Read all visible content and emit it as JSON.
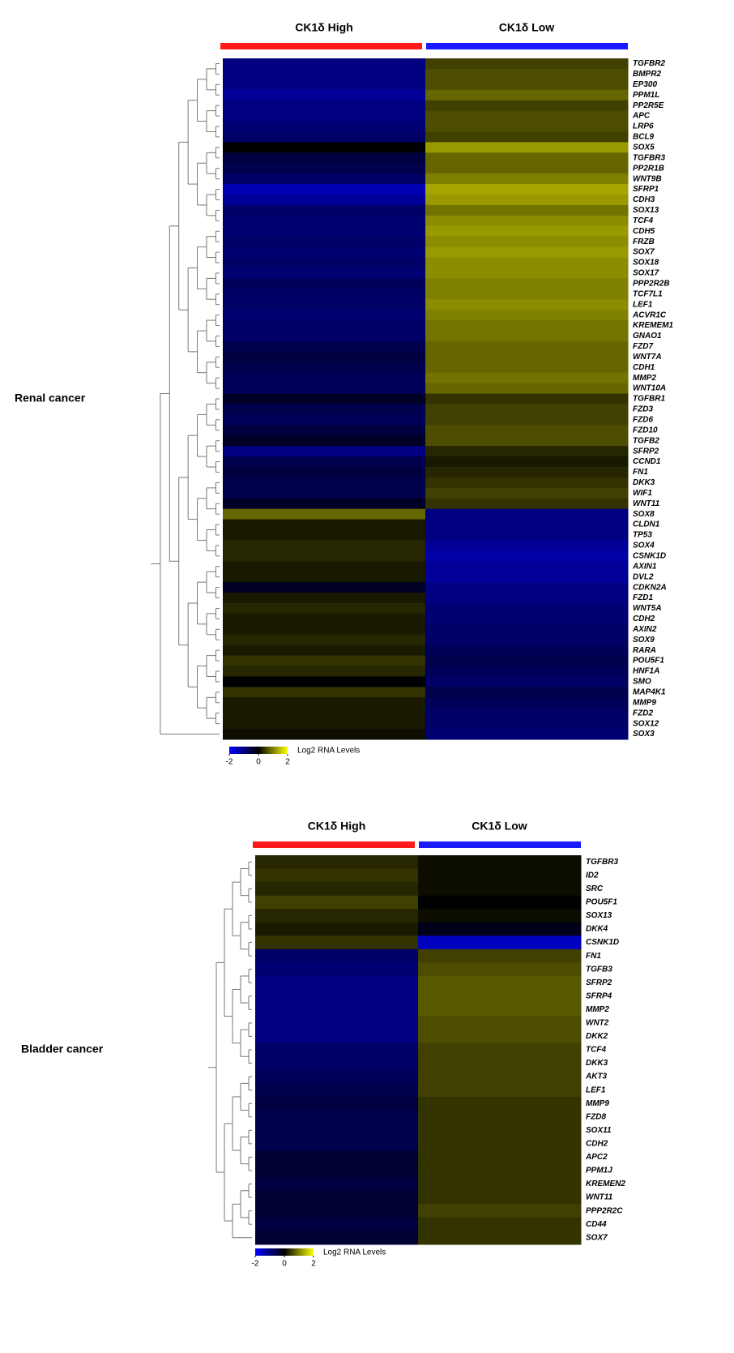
{
  "chart_data": [
    {
      "type": "heatmap",
      "row_title": "Renal cancer",
      "groups": [
        "CK1δ High",
        "CK1δ Low"
      ],
      "group_colors": [
        "#ff1a1a",
        "#1a1aff"
      ],
      "colorbar_label": "Log2 RNA Levels",
      "zlim": [
        -2,
        2
      ],
      "zticks": [
        -2,
        0,
        2
      ],
      "highlight_color": "#e00000",
      "highlight_rows": [
        47
      ],
      "rows": [
        {
          "gene": "TGFBR2",
          "values": [
            -1,
            0.5
          ]
        },
        {
          "gene": "BMPR2",
          "values": [
            -1,
            0.6
          ]
        },
        {
          "gene": "EP300",
          "values": [
            -1,
            0.6
          ]
        },
        {
          "gene": "PPM1L",
          "values": [
            -1.2,
            0.8
          ]
        },
        {
          "gene": "PP2R5E",
          "values": [
            -1,
            0.5
          ]
        },
        {
          "gene": "APC",
          "values": [
            -1,
            0.6
          ]
        },
        {
          "gene": "LRP6",
          "values": [
            -0.9,
            0.6
          ]
        },
        {
          "gene": "BCL9",
          "values": [
            -0.8,
            0.5
          ]
        },
        {
          "gene": "SOX5",
          "values": [
            0,
            1.2
          ]
        },
        {
          "gene": "TGFBR3",
          "values": [
            -0.5,
            0.8
          ]
        },
        {
          "gene": "PP2R1B",
          "values": [
            -0.6,
            0.8
          ]
        },
        {
          "gene": "WNT9B",
          "values": [
            -0.8,
            1
          ]
        },
        {
          "gene": "SFRP1",
          "values": [
            -1.4,
            1.3
          ]
        },
        {
          "gene": "CDH3",
          "values": [
            -1.2,
            1.2
          ]
        },
        {
          "gene": "SOX13",
          "values": [
            -0.8,
            0.9
          ]
        },
        {
          "gene": "TCF4",
          "values": [
            -0.9,
            1.1
          ]
        },
        {
          "gene": "CDH5",
          "values": [
            -0.9,
            1.2
          ]
        },
        {
          "gene": "FRZB",
          "values": [
            -0.8,
            1.1
          ]
        },
        {
          "gene": "SOX7",
          "values": [
            -0.9,
            1.2
          ]
        },
        {
          "gene": "SOX18",
          "values": [
            -0.8,
            1.1
          ]
        },
        {
          "gene": "SOX17",
          "values": [
            -0.9,
            1.1
          ]
        },
        {
          "gene": "PPP2R2B",
          "values": [
            -0.7,
            1
          ]
        },
        {
          "gene": "TCF7L1",
          "values": [
            -0.8,
            1
          ]
        },
        {
          "gene": "LEF1",
          "values": [
            -0.8,
            1.1
          ]
        },
        {
          "gene": "ACVR1C",
          "values": [
            -0.9,
            1
          ]
        },
        {
          "gene": "KREMEM1",
          "values": [
            -0.8,
            0.9
          ]
        },
        {
          "gene": "GNAO1",
          "values": [
            -0.8,
            0.9
          ]
        },
        {
          "gene": "FZD7",
          "values": [
            -0.6,
            0.8
          ]
        },
        {
          "gene": "WNT7A",
          "values": [
            -0.5,
            0.8
          ]
        },
        {
          "gene": "CDH1",
          "values": [
            -0.6,
            0.8
          ]
        },
        {
          "gene": "MMP2",
          "values": [
            -0.7,
            0.9
          ]
        },
        {
          "gene": "WNT10A",
          "values": [
            -0.7,
            0.8
          ]
        },
        {
          "gene": "TGFBR1",
          "values": [
            -0.3,
            0.4
          ]
        },
        {
          "gene": "FZD3",
          "values": [
            -0.6,
            0.5
          ]
        },
        {
          "gene": "FZD6",
          "values": [
            -0.7,
            0.5
          ]
        },
        {
          "gene": "FZD10",
          "values": [
            -0.5,
            0.6
          ]
        },
        {
          "gene": "TGFB2",
          "values": [
            -0.3,
            0.6
          ]
        },
        {
          "gene": "SFRP2",
          "values": [
            -1,
            0.3
          ]
        },
        {
          "gene": "CCND1",
          "values": [
            -0.6,
            0.2
          ]
        },
        {
          "gene": "FN1",
          "values": [
            -0.5,
            0.3
          ]
        },
        {
          "gene": "DKK3",
          "values": [
            -0.6,
            0.4
          ]
        },
        {
          "gene": "WIF1",
          "values": [
            -0.6,
            0.5
          ]
        },
        {
          "gene": "WNT11",
          "values": [
            -0.3,
            0.4
          ]
        },
        {
          "gene": "SOX8",
          "values": [
            0.8,
            -1
          ]
        },
        {
          "gene": "CLDN1",
          "values": [
            0.2,
            -1
          ]
        },
        {
          "gene": "TP53",
          "values": [
            0.2,
            -1
          ]
        },
        {
          "gene": "SOX4",
          "values": [
            0.3,
            -1.2
          ]
        },
        {
          "gene": "CSNK1D",
          "values": [
            0.3,
            -1.3
          ]
        },
        {
          "gene": "AXIN1",
          "values": [
            0.2,
            -1.2
          ]
        },
        {
          "gene": "DVL2",
          "values": [
            0.2,
            -1.2
          ]
        },
        {
          "gene": "CDKN2A",
          "values": [
            -0.3,
            -1
          ]
        },
        {
          "gene": "FZD1",
          "values": [
            0.2,
            -1
          ]
        },
        {
          "gene": "WNT5A",
          "values": [
            0.3,
            -0.9
          ]
        },
        {
          "gene": "CDH2",
          "values": [
            0.2,
            -0.9
          ]
        },
        {
          "gene": "AXIN2",
          "values": [
            0.2,
            -0.8
          ]
        },
        {
          "gene": "SOX9",
          "values": [
            0.3,
            -0.8
          ]
        },
        {
          "gene": "RARA",
          "values": [
            0.2,
            -0.7
          ]
        },
        {
          "gene": "POU5F1",
          "values": [
            0.4,
            -0.6
          ]
        },
        {
          "gene": "HNF1A",
          "values": [
            0.3,
            -0.7
          ]
        },
        {
          "gene": "SMO",
          "values": [
            0,
            -0.8
          ]
        },
        {
          "gene": "MAP4K1",
          "values": [
            0.4,
            -0.6
          ]
        },
        {
          "gene": "MMP9",
          "values": [
            0.2,
            -0.7
          ]
        },
        {
          "gene": "FZD2",
          "values": [
            0.2,
            -0.8
          ]
        },
        {
          "gene": "SOX12",
          "values": [
            0.2,
            -0.8
          ]
        },
        {
          "gene": "SOX3",
          "values": [
            0.1,
            -0.9
          ]
        }
      ]
    },
    {
      "type": "heatmap",
      "row_title": "Bladder cancer",
      "groups": [
        "CK1δ High",
        "CK1δ Low"
      ],
      "group_colors": [
        "#ff1a1a",
        "#1a1aff"
      ],
      "colorbar_label": "Log2 RNA Levels",
      "zlim": [
        -2,
        2
      ],
      "zticks": [
        -2,
        0,
        2
      ],
      "highlight_color": "#e00000",
      "highlight_rows": [
        6
      ],
      "rows": [
        {
          "gene": "TGFBR3",
          "values": [
            0.3,
            0.1
          ]
        },
        {
          "gene": "ID2",
          "values": [
            0.4,
            0.1
          ]
        },
        {
          "gene": "SRC",
          "values": [
            0.3,
            0.1
          ]
        },
        {
          "gene": "POU5F1",
          "values": [
            0.5,
            0
          ]
        },
        {
          "gene": "SOX13",
          "values": [
            0.3,
            0.1
          ]
        },
        {
          "gene": "DKK4",
          "values": [
            0.2,
            -0.2
          ]
        },
        {
          "gene": "CSNK1D",
          "values": [
            0.4,
            -1.5
          ]
        },
        {
          "gene": "FN1",
          "values": [
            -0.8,
            0.5
          ]
        },
        {
          "gene": "TGFB3",
          "values": [
            -0.9,
            0.6
          ]
        },
        {
          "gene": "SFRP2",
          "values": [
            -1,
            0.7
          ]
        },
        {
          "gene": "SFRP4",
          "values": [
            -1,
            0.7
          ]
        },
        {
          "gene": "MMP2",
          "values": [
            -1,
            0.7
          ]
        },
        {
          "gene": "WNT2",
          "values": [
            -1,
            0.6
          ]
        },
        {
          "gene": "DKK2",
          "values": [
            -1,
            0.6
          ]
        },
        {
          "gene": "TCF4",
          "values": [
            -0.8,
            0.5
          ]
        },
        {
          "gene": "DKK3",
          "values": [
            -0.8,
            0.5
          ]
        },
        {
          "gene": "AKT3",
          "values": [
            -0.7,
            0.5
          ]
        },
        {
          "gene": "LEF1",
          "values": [
            -0.6,
            0.5
          ]
        },
        {
          "gene": "MMP9",
          "values": [
            -0.5,
            0.4
          ]
        },
        {
          "gene": "FZD8",
          "values": [
            -0.6,
            0.4
          ]
        },
        {
          "gene": "SOX11",
          "values": [
            -0.6,
            0.4
          ]
        },
        {
          "gene": "CDH2",
          "values": [
            -0.6,
            0.4
          ]
        },
        {
          "gene": "APC2",
          "values": [
            -0.4,
            0.4
          ]
        },
        {
          "gene": "PPM1J",
          "values": [
            -0.4,
            0.4
          ]
        },
        {
          "gene": "KREMEN2",
          "values": [
            -0.5,
            0.4
          ]
        },
        {
          "gene": "WNT11",
          "values": [
            -0.4,
            0.4
          ]
        },
        {
          "gene": "PPP2R2C",
          "values": [
            -0.4,
            0.5
          ]
        },
        {
          "gene": "CD44",
          "values": [
            -0.5,
            0.4
          ]
        },
        {
          "gene": "SOX7",
          "values": [
            -0.4,
            0.4
          ]
        }
      ]
    }
  ]
}
